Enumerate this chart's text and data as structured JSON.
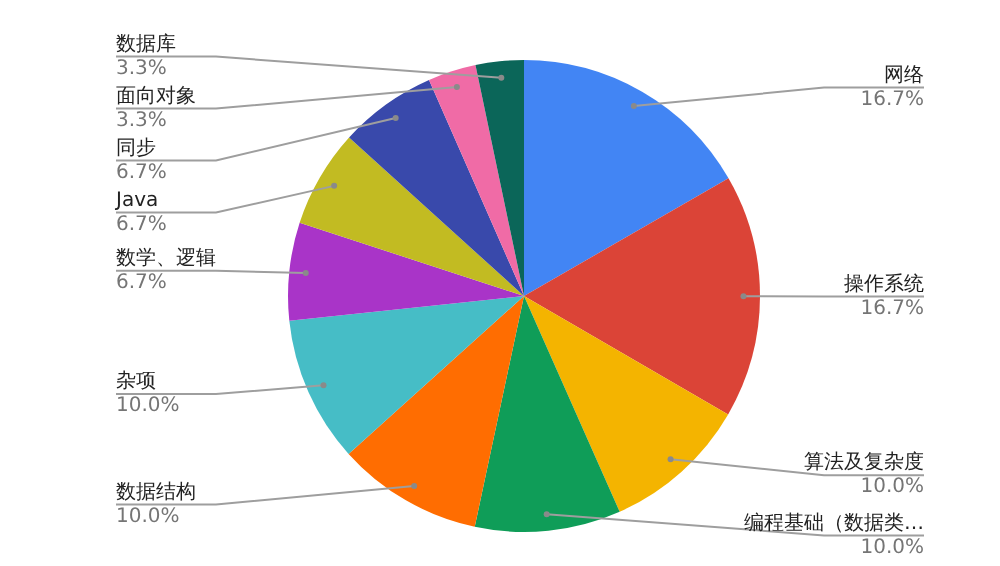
{
  "chart_data": {
    "type": "pie",
    "categories": [
      "网络",
      "操作系统",
      "算法及复杂度",
      "编程基础（数据类…",
      "数据结构",
      "杂项",
      "数学、逻辑",
      "Java",
      "同步",
      "面向对象",
      "数据库"
    ],
    "values": [
      16.7,
      16.7,
      10.0,
      10.0,
      10.0,
      10.0,
      6.7,
      6.7,
      6.7,
      3.3,
      3.3
    ],
    "colors": [
      "#4285f4",
      "#db4437",
      "#f4b400",
      "#0f9d58",
      "#ff6d01",
      "#46bdc6",
      "#a934c8",
      "#c2bb22",
      "#3949ab",
      "#f06ba6",
      "#0b6659"
    ],
    "value_labels": [
      "16.7%",
      "16.7%",
      "10.0%",
      "10.0%",
      "10.0%",
      "10.0%",
      "6.7%",
      "6.7%",
      "6.7%",
      "3.3%",
      "3.3%"
    ],
    "legend": false
  }
}
